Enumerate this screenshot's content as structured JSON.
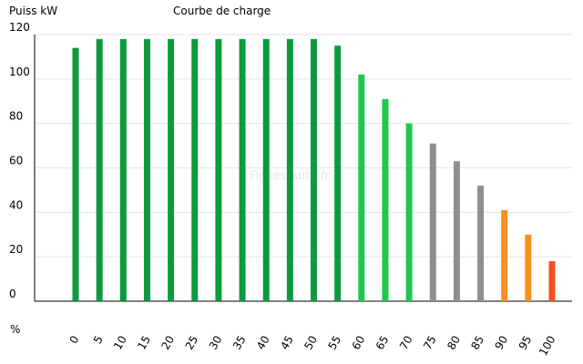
{
  "chart_data": {
    "type": "bar",
    "title": "Courbe de charge",
    "y_label": "Puiss kW",
    "x_label": "%",
    "watermark": "Fiches-auto.fr",
    "categories": [
      "0",
      "5",
      "10",
      "15",
      "20",
      "25",
      "30",
      "35",
      "40",
      "45",
      "50",
      "55",
      "60",
      "65",
      "70",
      "75",
      "80",
      "85",
      "90",
      "95",
      "100"
    ],
    "values": [
      114,
      118,
      118,
      118,
      118,
      118,
      118,
      118,
      118,
      118,
      118,
      115,
      102,
      91,
      80,
      71,
      63,
      52,
      41,
      30,
      18
    ],
    "colors": [
      "#0c9a3c",
      "#0c9a3c",
      "#0c9a3c",
      "#0c9a3c",
      "#0c9a3c",
      "#0c9a3c",
      "#0c9a3c",
      "#0c9a3c",
      "#0c9a3c",
      "#0c9a3c",
      "#0c9a3c",
      "#0c9a3c",
      "#1ec84c",
      "#1ec84c",
      "#1ec84c",
      "#8e8e8e",
      "#8e8e8e",
      "#8e8e8e",
      "#f7901e",
      "#f7901e",
      "#f4511e"
    ],
    "ylim": [
      0,
      120
    ],
    "yticks": [
      0,
      20,
      40,
      60,
      80,
      100,
      120
    ],
    "grid": true
  }
}
